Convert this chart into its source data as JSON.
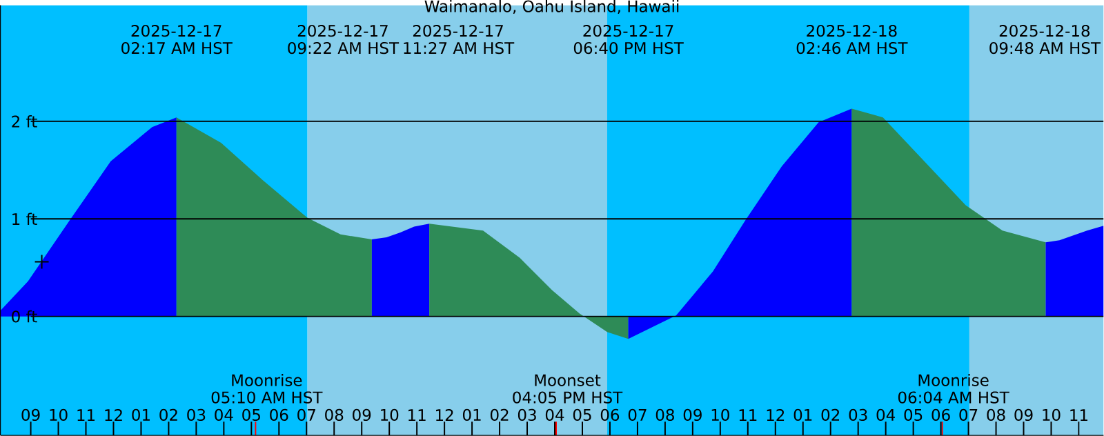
{
  "chart_data": {
    "type": "area",
    "title": "Waimanalo, Oahu Island, Hawaii",
    "xlim": [
      "2025-12-16T19:54",
      "2025-12-18T11:54"
    ],
    "ylim": [
      -1.22,
      3.19
    ],
    "xticks": [
      {
        "value": "2025-12-16T21:00",
        "label": "09"
      },
      {
        "value": "2025-12-16T22:00",
        "label": "10"
      },
      {
        "value": "2025-12-16T23:00",
        "label": "11"
      },
      {
        "value": "2025-12-17T00:00",
        "label": "12"
      },
      {
        "value": "2025-12-17T01:00",
        "label": "01"
      },
      {
        "value": "2025-12-17T02:00",
        "label": "02"
      },
      {
        "value": "2025-12-17T03:00",
        "label": "03"
      },
      {
        "value": "2025-12-17T04:00",
        "label": "04"
      },
      {
        "value": "2025-12-17T05:00",
        "label": "05"
      },
      {
        "value": "2025-12-17T06:00",
        "label": "06"
      },
      {
        "value": "2025-12-17T07:00",
        "label": "07"
      },
      {
        "value": "2025-12-17T08:00",
        "label": "08"
      },
      {
        "value": "2025-12-17T09:00",
        "label": "09"
      },
      {
        "value": "2025-12-17T10:00",
        "label": "10"
      },
      {
        "value": "2025-12-17T11:00",
        "label": "11"
      },
      {
        "value": "2025-12-17T12:00",
        "label": "12"
      },
      {
        "value": "2025-12-17T13:00",
        "label": "01"
      },
      {
        "value": "2025-12-17T14:00",
        "label": "02"
      },
      {
        "value": "2025-12-17T15:00",
        "label": "03"
      },
      {
        "value": "2025-12-17T16:00",
        "label": "04"
      },
      {
        "value": "2025-12-17T17:00",
        "label": "05"
      },
      {
        "value": "2025-12-17T18:00",
        "label": "06"
      },
      {
        "value": "2025-12-17T19:00",
        "label": "07"
      },
      {
        "value": "2025-12-17T20:00",
        "label": "08"
      },
      {
        "value": "2025-12-17T21:00",
        "label": "09"
      },
      {
        "value": "2025-12-17T22:00",
        "label": "10"
      },
      {
        "value": "2025-12-17T23:00",
        "label": "11"
      },
      {
        "value": "2025-12-18T00:00",
        "label": "12"
      },
      {
        "value": "2025-12-18T01:00",
        "label": "01"
      },
      {
        "value": "2025-12-18T02:00",
        "label": "02"
      },
      {
        "value": "2025-12-18T03:00",
        "label": "03"
      },
      {
        "value": "2025-12-18T04:00",
        "label": "04"
      },
      {
        "value": "2025-12-18T05:00",
        "label": "05"
      },
      {
        "value": "2025-12-18T06:00",
        "label": "06"
      },
      {
        "value": "2025-12-18T07:00",
        "label": "07"
      },
      {
        "value": "2025-12-18T08:00",
        "label": "08"
      },
      {
        "value": "2025-12-18T09:00",
        "label": "09"
      },
      {
        "value": "2025-12-18T10:00",
        "label": "10"
      },
      {
        "value": "2025-12-18T11:00",
        "label": "11"
      }
    ],
    "yticks": [
      {
        "value": 0,
        "label": "0 ft"
      },
      {
        "value": 1,
        "label": "1 ft"
      },
      {
        "value": 2,
        "label": "2 ft"
      }
    ],
    "grid": "y",
    "bands": [
      {
        "axis": "x",
        "from": "2025-12-16T19:54",
        "to": "2025-12-17T07:02",
        "color": "#00bfff"
      },
      {
        "axis": "x",
        "from": "2025-12-17T07:02",
        "to": "2025-12-17T17:54",
        "color": "#87ceeb"
      },
      {
        "axis": "x",
        "from": "2025-12-17T17:54",
        "to": "2025-12-18T07:02",
        "color": "#00bfff"
      },
      {
        "axis": "x",
        "from": "2025-12-18T07:02",
        "to": "2025-12-18T11:54",
        "color": "#87ceeb"
      }
    ],
    "series": [
      {
        "color": "#0000ff",
        "x": [
          "2025-12-16T19:54",
          "2025-12-16T20:54",
          "2025-12-16T22:24",
          "2025-12-16T23:54",
          "2025-12-17T01:24",
          "2025-12-17T02:17"
        ],
        "values": [
          0.06,
          0.36,
          0.98,
          1.59,
          1.94,
          2.04
        ]
      },
      {
        "color": "#2e8b57",
        "x": [
          "2025-12-17T02:17",
          "2025-12-17T03:54",
          "2025-12-17T05:24",
          "2025-12-17T07:02",
          "2025-12-17T08:14",
          "2025-12-17T09:22"
        ],
        "values": [
          2.04,
          1.78,
          1.4,
          1.01,
          0.84,
          0.79
        ]
      },
      {
        "color": "#0000ff",
        "x": [
          "2025-12-17T09:22",
          "2025-12-17T09:54",
          "2025-12-17T10:24",
          "2025-12-17T10:54",
          "2025-12-17T11:27"
        ],
        "values": [
          0.79,
          0.81,
          0.86,
          0.92,
          0.95
        ]
      },
      {
        "color": "#2e8b57",
        "x": [
          "2025-12-17T11:27",
          "2025-12-17T13:24",
          "2025-12-17T14:44",
          "2025-12-17T15:54",
          "2025-12-17T16:54",
          "2025-12-17T17:54",
          "2025-12-17T18:40"
        ],
        "values": [
          0.95,
          0.88,
          0.6,
          0.27,
          0.03,
          -0.16,
          -0.23
        ]
      },
      {
        "color": "#0000ff",
        "x": [
          "2025-12-17T18:40",
          "2025-12-17T20:24",
          "2025-12-17T21:44",
          "2025-12-17T22:54",
          "2025-12-18T00:14",
          "2025-12-18T01:34",
          "2025-12-18T02:46"
        ],
        "values": [
          -0.23,
          0.01,
          0.46,
          0.98,
          1.54,
          1.99,
          2.13
        ]
      },
      {
        "color": "#2e8b57",
        "x": [
          "2025-12-18T02:46",
          "2025-12-18T03:54",
          "2025-12-18T05:14",
          "2025-12-18T06:54",
          "2025-12-18T08:14",
          "2025-12-18T09:48"
        ],
        "values": [
          2.13,
          2.04,
          1.64,
          1.14,
          0.88,
          0.76
        ]
      },
      {
        "color": "#0000ff",
        "x": [
          "2025-12-18T09:48",
          "2025-12-18T10:18",
          "2025-12-18T10:48",
          "2025-12-18T11:18",
          "2025-12-18T11:54"
        ],
        "values": [
          0.76,
          0.78,
          0.83,
          0.88,
          0.93
        ]
      },
      {
        "type": "scatter",
        "marker": "cross",
        "color": "#000000",
        "x": [
          "2025-12-16T21:24"
        ],
        "values": [
          0.56
        ]
      }
    ],
    "annotations": [
      "2025-12-17",
      "02:17 AM HST",
      "2025-12-17",
      "09:22 AM HST",
      "2025-12-17",
      "11:27 AM HST",
      "2025-12-17",
      "06:40 PM HST",
      "2025-12-18",
      "02:46 AM HST",
      "2025-12-18",
      "09:48 AM HST",
      "Moonrise",
      "05:10 AM HST",
      "Moonset",
      "04:05 PM HST",
      "Moonrise",
      "06:04 AM HST"
    ]
  }
}
